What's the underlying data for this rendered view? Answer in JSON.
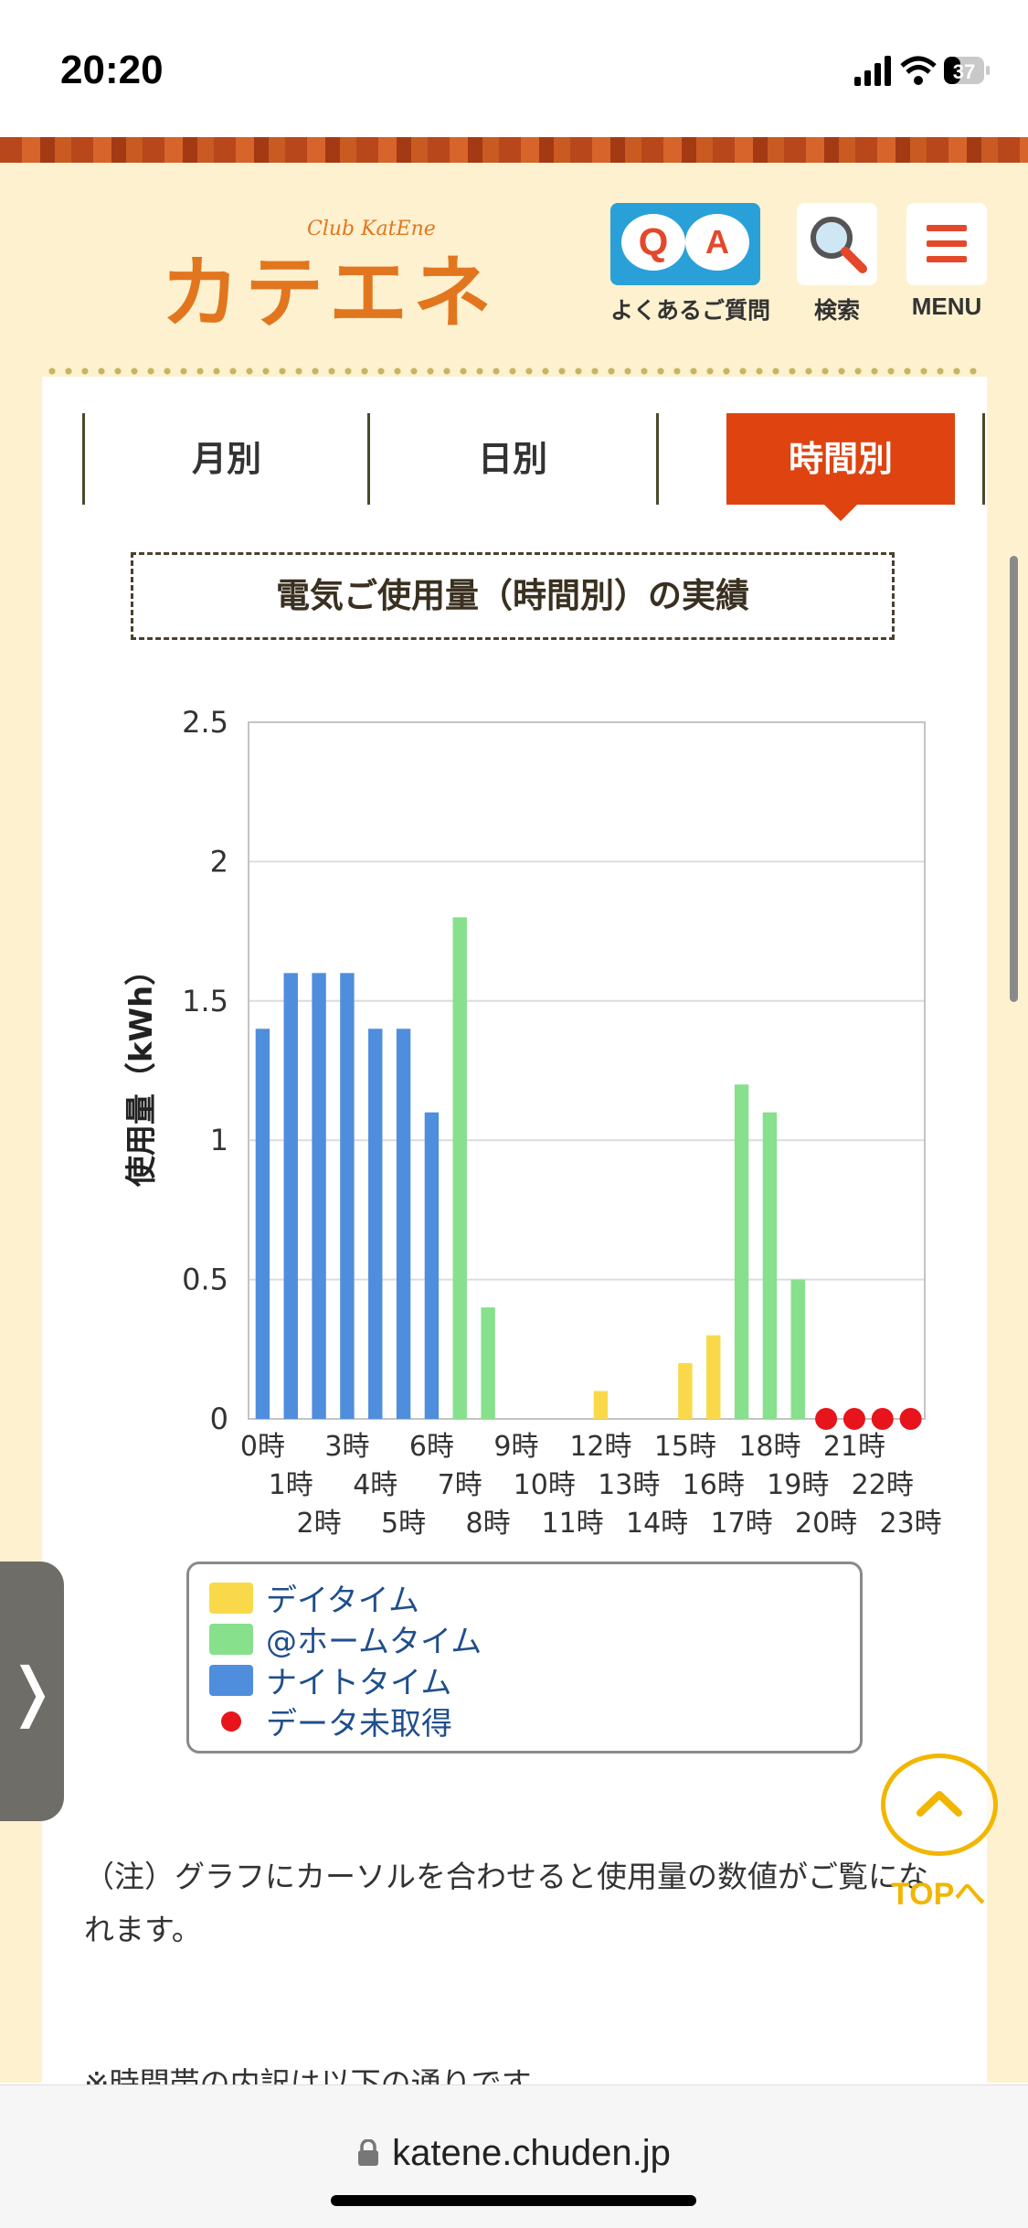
{
  "status_bar": {
    "time": "20:20",
    "battery": "37"
  },
  "header": {
    "logo_text": "カテエネ",
    "logo_sub": "Club KatEne",
    "faq": {
      "q": "Q",
      "a": "A",
      "label": "よくあるご質問"
    },
    "search_label": "検索",
    "menu_label": "MENU"
  },
  "tabs": [
    {
      "label": "月別",
      "active": false
    },
    {
      "label": "日別",
      "active": false
    },
    {
      "label": "時間別",
      "active": true
    }
  ],
  "section_title": "電気ご使用量（時間別）の実績",
  "chart_data": {
    "type": "bar",
    "ylabel": "使用量（kWh）",
    "ylim": [
      0,
      2.5
    ],
    "yticks": [
      "0",
      "0.5",
      "1",
      "1.5",
      "2",
      "2.5"
    ],
    "categories": [
      "0時",
      "1時",
      "2時",
      "3時",
      "4時",
      "5時",
      "6時",
      "7時",
      "8時",
      "9時",
      "10時",
      "11時",
      "12時",
      "13時",
      "14時",
      "15時",
      "16時",
      "17時",
      "18時",
      "19時",
      "20時",
      "21時",
      "22時",
      "23時"
    ],
    "values": [
      1.4,
      1.6,
      1.6,
      1.6,
      1.4,
      1.4,
      1.1,
      1.8,
      0.4,
      0,
      0,
      0,
      0.1,
      0,
      0,
      0.2,
      0.3,
      1.2,
      1.1,
      0.5,
      null,
      null,
      null,
      null
    ],
    "series_type": [
      "night",
      "night",
      "night",
      "night",
      "night",
      "night",
      "night",
      "home",
      "home",
      "day",
      "day",
      "day",
      "day",
      "day",
      "day",
      "day",
      "day",
      "home",
      "home",
      "home",
      "missing",
      "missing",
      "missing",
      "missing"
    ],
    "colors": {
      "day": "#f9d94a",
      "home": "#86e08c",
      "night": "#4f8edc",
      "missing": "#e8141c"
    },
    "legend": [
      {
        "key": "day",
        "label": "デイタイム"
      },
      {
        "key": "home",
        "label": "@ホームタイム"
      },
      {
        "key": "night",
        "label": "ナイトタイム"
      },
      {
        "key": "missing",
        "label": "データ未取得"
      }
    ]
  },
  "note": "（注）グラフにカーソルを合わせると使用量の数値がご覧になれます。",
  "note2": "※時間帯の内訳は以下の通りです",
  "top_label": "TOPへ",
  "url": "katene.chuden.jp"
}
